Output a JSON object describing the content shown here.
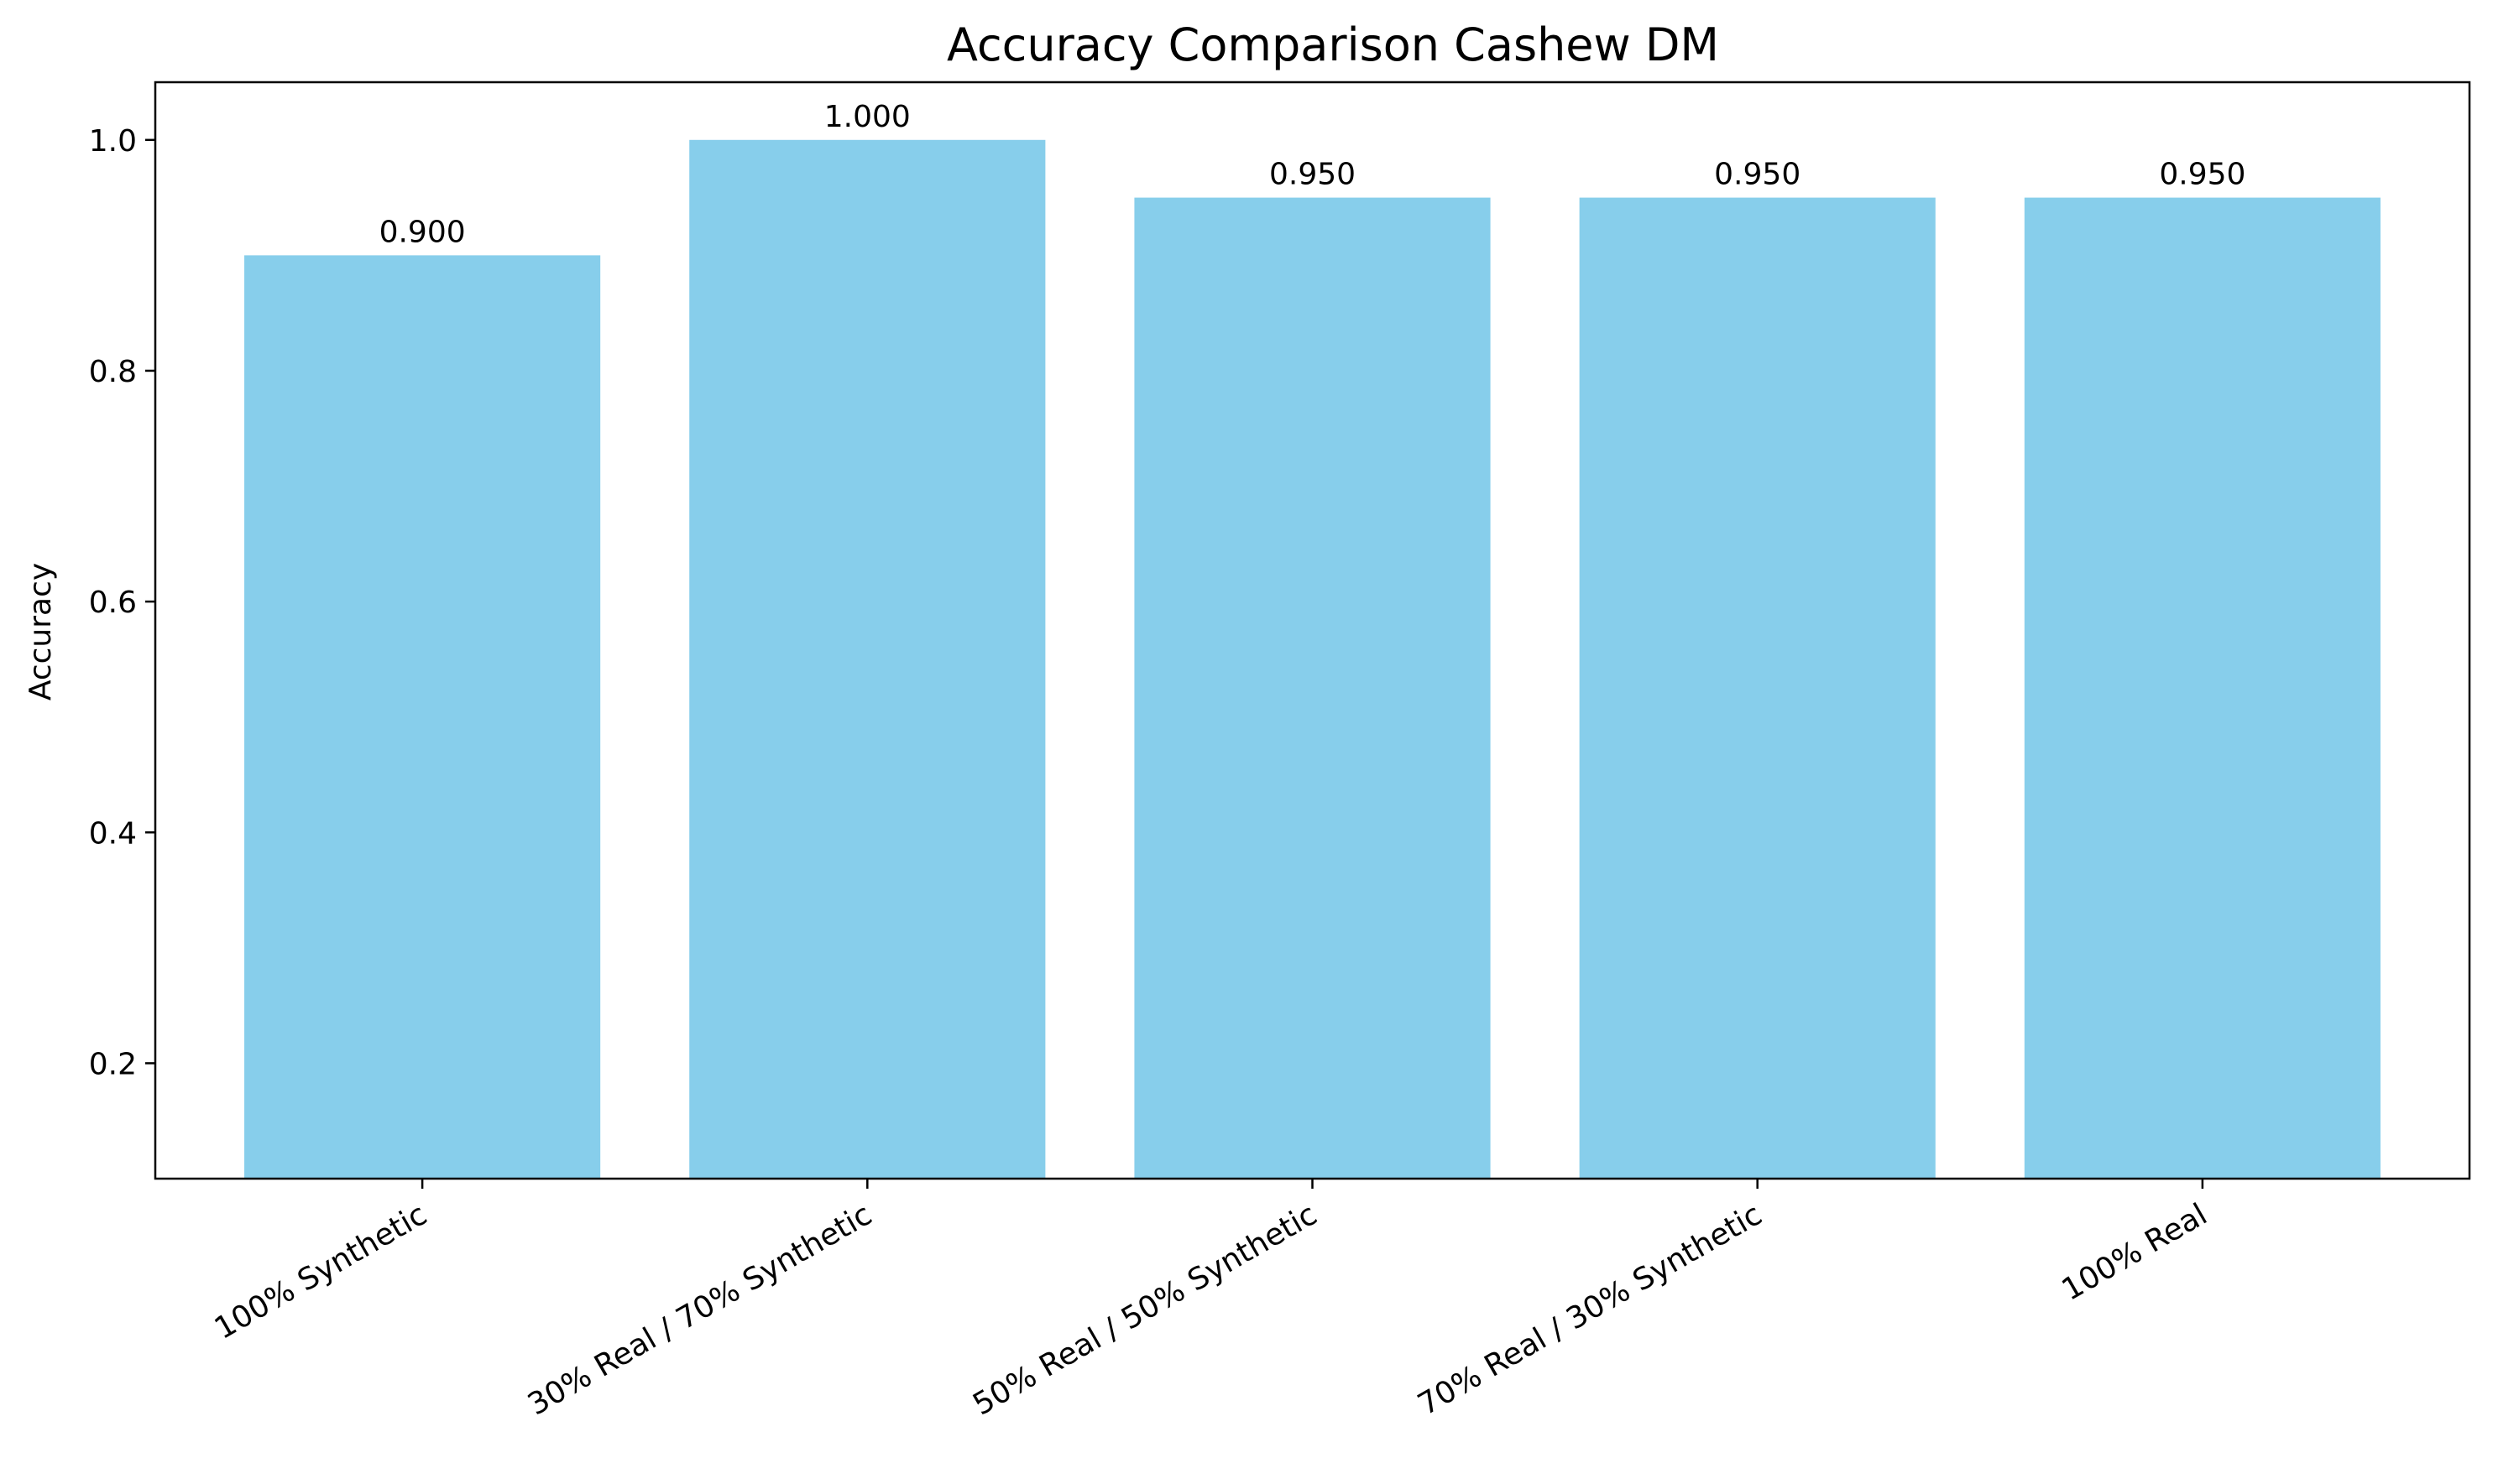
{
  "chart_data": {
    "type": "bar",
    "title": "Accuracy Comparison Cashew DM",
    "xlabel": "",
    "ylabel": "Accuracy",
    "categories": [
      "100% Synthetic",
      "30% Real / 70% Synthetic",
      "50% Real / 50% Synthetic",
      "70% Real / 30% Synthetic",
      "100% Real"
    ],
    "values": [
      0.9,
      1.0,
      0.95,
      0.95,
      0.95
    ],
    "data_labels": [
      "0.900",
      "1.000",
      "0.950",
      "0.950",
      "0.950"
    ],
    "ylim": [
      0.1,
      1.05
    ],
    "yticks": [
      0.2,
      0.4,
      0.6,
      0.8,
      1.0
    ],
    "ytick_labels": [
      "0.2",
      "0.4",
      "0.6",
      "0.8",
      "1.0"
    ],
    "grid": false,
    "bar_color": "#87CEEB"
  }
}
